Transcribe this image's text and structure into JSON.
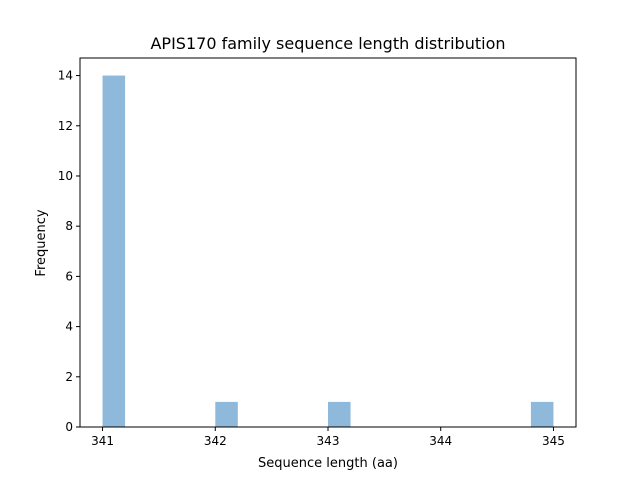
{
  "chart_data": {
    "type": "bar",
    "title": "APIS170 family sequence length distribution",
    "xlabel": "Sequence length (aa)",
    "ylabel": "Frequency",
    "categories": [
      "341",
      "342",
      "343",
      "344",
      "345"
    ],
    "values": [
      14,
      1,
      1,
      0,
      1
    ],
    "bins": [
      {
        "left": 341.0,
        "right": 341.2,
        "count": 14
      },
      {
        "left": 342.0,
        "right": 342.2,
        "count": 1
      },
      {
        "left": 343.0,
        "right": 343.2,
        "count": 1
      },
      {
        "left": 344.8,
        "right": 345.0,
        "count": 1
      }
    ],
    "bin_width": 0.2,
    "xlim": [
      340.8,
      345.2
    ],
    "ylim": [
      0,
      14.7
    ],
    "xticks": [
      341,
      342,
      343,
      344,
      345
    ],
    "yticks": [
      0,
      2,
      4,
      6,
      8,
      10,
      12,
      14
    ],
    "grid": false,
    "legend": null,
    "bar_color": "#8fb9da"
  }
}
